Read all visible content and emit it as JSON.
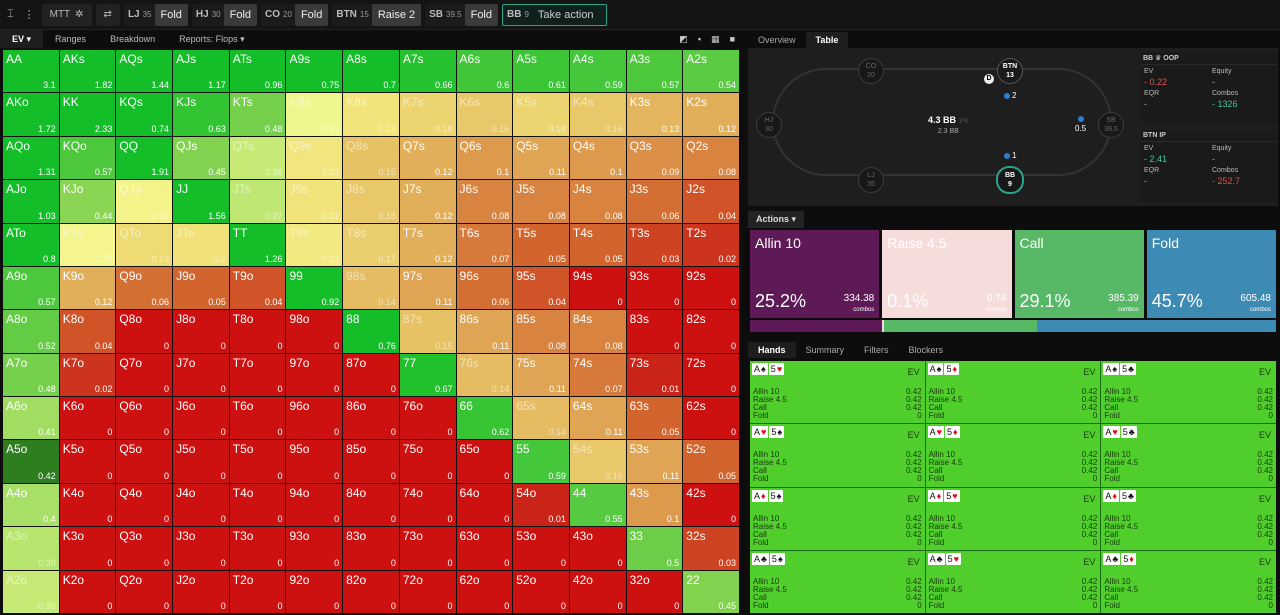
{
  "toolbar": {
    "seats": [
      {
        "pos": "MTT",
        "stack": "",
        "action": "",
        "kind": "label"
      },
      {
        "pos": "LJ",
        "stack": "35",
        "action": "Fold"
      },
      {
        "pos": "HJ",
        "stack": "30",
        "action": "Fold"
      },
      {
        "pos": "CO",
        "stack": "20",
        "action": "Fold"
      },
      {
        "pos": "BTN",
        "stack": "15",
        "action": "Raise 2"
      },
      {
        "pos": "SB",
        "stack": "39.5",
        "action": "Fold"
      },
      {
        "pos": "BB",
        "stack": "9",
        "action": "Take action",
        "current": true
      }
    ]
  },
  "grid_tabs": {
    "ev": "EV ▾",
    "ranges": "Ranges",
    "breakdown": "Breakdown",
    "reports": "Reports: Flops ▾"
  },
  "grid_view_icons": [
    "◩",
    "▪",
    "▦",
    "■"
  ],
  "grid": {
    "cells": [
      [
        [
          "AA",
          "3.1"
        ],
        [
          "AKs",
          "1.82"
        ],
        [
          "AQs",
          "1.44"
        ],
        [
          "AJs",
          "1.17"
        ],
        [
          "ATs",
          "0.96"
        ],
        [
          "A9s",
          "0.75"
        ],
        [
          "A8s",
          "0.7"
        ],
        [
          "A7s",
          "0.66"
        ],
        [
          "A6s",
          "0.6"
        ],
        [
          "A5s",
          "0.61"
        ],
        [
          "A4s",
          "0.59"
        ],
        [
          "A3s",
          "0.57"
        ],
        [
          "A2s",
          "0.54"
        ]
      ],
      [
        [
          "AKo",
          "1.72"
        ],
        [
          "KK",
          "2.33"
        ],
        [
          "KQs",
          "0.74"
        ],
        [
          "KJs",
          "0.63"
        ],
        [
          "KTs",
          "0.48"
        ],
        [
          "K9s",
          "0.31"
        ],
        [
          "K8s",
          "0.21"
        ],
        [
          "K7s",
          "0.18"
        ],
        [
          "K6s",
          "0.16"
        ],
        [
          "K5s",
          "0.18"
        ],
        [
          "K4s",
          "0.16"
        ],
        [
          "K3s",
          "0.13"
        ],
        [
          "K2s",
          "0.12"
        ]
      ],
      [
        [
          "AQo",
          "1.31"
        ],
        [
          "KQo",
          "0.57"
        ],
        [
          "QQ",
          "1.91"
        ],
        [
          "QJs",
          "0.45"
        ],
        [
          "QTs",
          "0.36"
        ],
        [
          "Q9s",
          "0.22"
        ],
        [
          "Q8s",
          "0.15"
        ],
        [
          "Q7s",
          "0.12"
        ],
        [
          "Q6s",
          "0.1"
        ],
        [
          "Q5s",
          "0.11"
        ],
        [
          "Q4s",
          "0.1"
        ],
        [
          "Q3s",
          "0.09"
        ],
        [
          "Q2s",
          "0.08"
        ]
      ],
      [
        [
          "AJo",
          "1.03"
        ],
        [
          "KJo",
          "0.44"
        ],
        [
          "QJo",
          "0.27"
        ],
        [
          "JJ",
          "1.56"
        ],
        [
          "JTs",
          "0.37"
        ],
        [
          "J9s",
          "0.21"
        ],
        [
          "J8s",
          "0.16"
        ],
        [
          "J7s",
          "0.12"
        ],
        [
          "J6s",
          "0.08"
        ],
        [
          "J5s",
          "0.08"
        ],
        [
          "J4s",
          "0.08"
        ],
        [
          "J3s",
          "0.06"
        ],
        [
          "J2s",
          "0.04"
        ]
      ],
      [
        [
          "ATo",
          "0.8"
        ],
        [
          "KTo",
          "0.28"
        ],
        [
          "QTo",
          "0.19"
        ],
        [
          "JTo",
          "0.2"
        ],
        [
          "TT",
          "1.26"
        ],
        [
          "T9s",
          "0.23"
        ],
        [
          "T8s",
          "0.17"
        ],
        [
          "T7s",
          "0.12"
        ],
        [
          "T6s",
          "0.07"
        ],
        [
          "T5s",
          "0.05"
        ],
        [
          "T4s",
          "0.05"
        ],
        [
          "T3s",
          "0.03"
        ],
        [
          "T2s",
          "0.02"
        ]
      ],
      [
        [
          "A9o",
          "0.57"
        ],
        [
          "K9o",
          "0.12"
        ],
        [
          "Q9o",
          "0.06"
        ],
        [
          "J9o",
          "0.05"
        ],
        [
          "T9o",
          "0.04"
        ],
        [
          "99",
          "0.92"
        ],
        [
          "98s",
          "0.14"
        ],
        [
          "97s",
          "0.11"
        ],
        [
          "96s",
          "0.06"
        ],
        [
          "95s",
          "0.04"
        ],
        [
          "94s",
          "0"
        ],
        [
          "93s",
          "0"
        ],
        [
          "92s",
          "0"
        ]
      ],
      [
        [
          "A8o",
          "0.52"
        ],
        [
          "K8o",
          "0.04"
        ],
        [
          "Q8o",
          "0"
        ],
        [
          "J8o",
          "0"
        ],
        [
          "T8o",
          "0"
        ],
        [
          "98o",
          "0"
        ],
        [
          "88",
          "0.76"
        ],
        [
          "87s",
          "0.15"
        ],
        [
          "86s",
          "0.11"
        ],
        [
          "85s",
          "0.08"
        ],
        [
          "84s",
          "0.08"
        ],
        [
          "83s",
          "0"
        ],
        [
          "82s",
          "0"
        ]
      ],
      [
        [
          "A7o",
          "0.48"
        ],
        [
          "K7o",
          "0.02"
        ],
        [
          "Q7o",
          "0"
        ],
        [
          "J7o",
          "0"
        ],
        [
          "T7o",
          "0"
        ],
        [
          "97o",
          "0"
        ],
        [
          "87o",
          "0"
        ],
        [
          "77",
          "0.67"
        ],
        [
          "76s",
          "0.14"
        ],
        [
          "75s",
          "0.11"
        ],
        [
          "74s",
          "0.07"
        ],
        [
          "73s",
          "0.01"
        ],
        [
          "72s",
          "0"
        ]
      ],
      [
        [
          "A6o",
          "0.41"
        ],
        [
          "K6o",
          "0"
        ],
        [
          "Q6o",
          "0"
        ],
        [
          "J6o",
          "0"
        ],
        [
          "T6o",
          "0"
        ],
        [
          "96o",
          "0"
        ],
        [
          "86o",
          "0"
        ],
        [
          "76o",
          "0"
        ],
        [
          "66",
          "0.62"
        ],
        [
          "65s",
          "0.14"
        ],
        [
          "64s",
          "0.11"
        ],
        [
          "63s",
          "0.05"
        ],
        [
          "62s",
          "0"
        ]
      ],
      [
        [
          "A5o",
          "0.42"
        ],
        [
          "K5o",
          "0"
        ],
        [
          "Q5o",
          "0"
        ],
        [
          "J5o",
          "0"
        ],
        [
          "T5o",
          "0"
        ],
        [
          "95o",
          "0"
        ],
        [
          "85o",
          "0"
        ],
        [
          "75o",
          "0"
        ],
        [
          "65o",
          "0"
        ],
        [
          "55",
          "0.59"
        ],
        [
          "54s",
          "0.16"
        ],
        [
          "53s",
          "0.11"
        ],
        [
          "52s",
          "0.05"
        ]
      ],
      [
        [
          "A4o",
          "0.4"
        ],
        [
          "K4o",
          "0"
        ],
        [
          "Q4o",
          "0"
        ],
        [
          "J4o",
          "0"
        ],
        [
          "T4o",
          "0"
        ],
        [
          "94o",
          "0"
        ],
        [
          "84o",
          "0"
        ],
        [
          "74o",
          "0"
        ],
        [
          "64o",
          "0"
        ],
        [
          "54o",
          "0.01"
        ],
        [
          "44",
          "0.55"
        ],
        [
          "43s",
          "0.1"
        ],
        [
          "42s",
          "0"
        ]
      ],
      [
        [
          "A3o",
          "0.38"
        ],
        [
          "K3o",
          "0"
        ],
        [
          "Q3o",
          "0"
        ],
        [
          "J3o",
          "0"
        ],
        [
          "T3o",
          "0"
        ],
        [
          "93o",
          "0"
        ],
        [
          "83o",
          "0"
        ],
        [
          "73o",
          "0"
        ],
        [
          "63o",
          "0"
        ],
        [
          "53o",
          "0"
        ],
        [
          "43o",
          "0"
        ],
        [
          "33",
          "0.5"
        ],
        [
          "32s",
          "0.03"
        ]
      ],
      [
        [
          "A2o",
          "0.36"
        ],
        [
          "K2o",
          "0"
        ],
        [
          "Q2o",
          "0"
        ],
        [
          "J2o",
          "0"
        ],
        [
          "T2o",
          "0"
        ],
        [
          "92o",
          "0"
        ],
        [
          "82o",
          "0"
        ],
        [
          "72o",
          "0"
        ],
        [
          "62o",
          "0"
        ],
        [
          "52o",
          "0"
        ],
        [
          "42o",
          "0"
        ],
        [
          "32o",
          "0"
        ],
        [
          "22",
          "0.45"
        ]
      ]
    ],
    "highlighted_cell": "A5o"
  },
  "right_tabs": {
    "overview": "Overview",
    "table": "Table"
  },
  "table": {
    "players": [
      {
        "pos": "CO",
        "stack": "20",
        "state": "folded"
      },
      {
        "pos": "BTN",
        "stack": "13",
        "state": "active"
      },
      {
        "pos": "HJ",
        "stack": "30",
        "state": "folded"
      },
      {
        "pos": "SB",
        "stack": "39.5",
        "state": "folded"
      },
      {
        "pos": "LJ",
        "stack": "35",
        "state": "folded"
      },
      {
        "pos": "BB",
        "stack": "9",
        "state": "hero"
      }
    ],
    "dealer": "D",
    "bets": {
      "btn": "2",
      "sb": "0.5",
      "bb": "1"
    },
    "pot": "4.3 BB",
    "pot_pct": "1%",
    "pot_sub": "2.3 BB"
  },
  "stats": {
    "bb": {
      "title": "BB ♛ OOP",
      "ev_label": "EV",
      "ev": "- 0.22",
      "eq_label": "Equity",
      "eq": "-",
      "eqr_label": "EQR",
      "eqr": "-",
      "combos_label": "Combos",
      "combos": "- 1326"
    },
    "btn": {
      "title": "BTN IP",
      "ev_label": "EV",
      "ev": "- 2.41",
      "eq_label": "Equity",
      "eq": "-",
      "eqr_label": "EQR",
      "eqr": "-",
      "combos_label": "Combos",
      "combos": "- 252.7"
    }
  },
  "actions_label": "Actions ▾",
  "actions": [
    {
      "label": "Allin 10",
      "pct": "25.2%",
      "combos": "334.38",
      "combos_label": "combos",
      "color": "#5e1a57",
      "text": "#ffffff"
    },
    {
      "label": "Raise 4.5",
      "pct": "0.1%",
      "combos": "0.74",
      "combos_label": "combos",
      "color": "#f7dcdc",
      "text": "#ffffff"
    },
    {
      "label": "Call",
      "pct": "29.1%",
      "combos": "385.39",
      "combos_label": "combos",
      "color": "#57b866",
      "text": "#ffffff"
    },
    {
      "label": "Fold",
      "pct": "45.7%",
      "combos": "605.48",
      "combos_label": "combos",
      "color": "#3d8ab5",
      "text": "#ffffff"
    }
  ],
  "action_bar": [
    {
      "color": "#5e1a57",
      "share": 25.2
    },
    {
      "color": "#f7dcdc",
      "share": 0.1
    },
    {
      "color": "#57b866",
      "share": 29.1
    },
    {
      "color": "#3d8ab5",
      "share": 45.7
    }
  ],
  "hand_tabs": {
    "hands": "Hands",
    "summary": "Summary",
    "filters": "Filters",
    "blockers": "Blockers"
  },
  "hands": [
    {
      "c1": {
        "r": "A",
        "s": "♠",
        "red": false
      },
      "c2": {
        "r": "5",
        "s": "♥",
        "red": true
      }
    },
    {
      "c1": {
        "r": "A",
        "s": "♠",
        "red": false
      },
      "c2": {
        "r": "5",
        "s": "♦",
        "red": true
      }
    },
    {
      "c1": {
        "r": "A",
        "s": "♠",
        "red": false
      },
      "c2": {
        "r": "5",
        "s": "♣",
        "red": false
      }
    },
    {
      "c1": {
        "r": "A",
        "s": "♥",
        "red": true
      },
      "c2": {
        "r": "5",
        "s": "♠",
        "red": false
      }
    },
    {
      "c1": {
        "r": "A",
        "s": "♥",
        "red": true
      },
      "c2": {
        "r": "5",
        "s": "♦",
        "red": true
      }
    },
    {
      "c1": {
        "r": "A",
        "s": "♥",
        "red": true
      },
      "c2": {
        "r": "5",
        "s": "♣",
        "red": false
      }
    },
    {
      "c1": {
        "r": "A",
        "s": "♦",
        "red": true
      },
      "c2": {
        "r": "5",
        "s": "♠",
        "red": false
      }
    },
    {
      "c1": {
        "r": "A",
        "s": "♦",
        "red": true
      },
      "c2": {
        "r": "5",
        "s": "♥",
        "red": true
      }
    },
    {
      "c1": {
        "r": "A",
        "s": "♦",
        "red": true
      },
      "c2": {
        "r": "5",
        "s": "♣",
        "red": false
      }
    },
    {
      "c1": {
        "r": "A",
        "s": "♣",
        "red": false
      },
      "c2": {
        "r": "5",
        "s": "♠",
        "red": false
      }
    },
    {
      "c1": {
        "r": "A",
        "s": "♣",
        "red": false
      },
      "c2": {
        "r": "5",
        "s": "♥",
        "red": true
      }
    },
    {
      "c1": {
        "r": "A",
        "s": "♣",
        "red": false
      },
      "c2": {
        "r": "5",
        "s": "♦",
        "red": true
      }
    }
  ],
  "hand_stats": {
    "ev_label": "EV",
    "rows": [
      {
        "label": "Allin 10",
        "value": "0.42"
      },
      {
        "label": "Raise 4.5",
        "value": "0.42"
      },
      {
        "label": "Call",
        "value": "0.42"
      },
      {
        "label": "Fold",
        "value": "0"
      }
    ]
  }
}
